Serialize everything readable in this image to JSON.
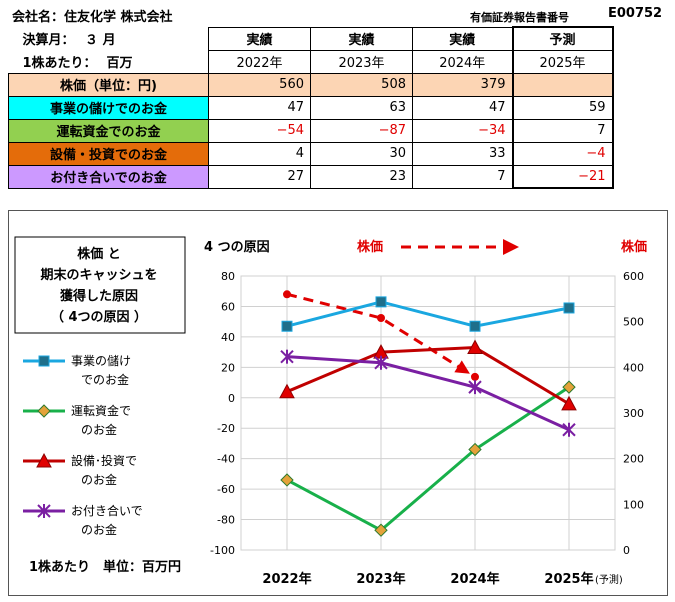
{
  "header": {
    "company": "会社名：住友化学 株式会社",
    "doc_label": "有価証券報告書番号",
    "doc_code": "E00752",
    "fiscal_label": "決算月：",
    "fiscal_value": "３ 月",
    "per_share_label": "1株あたり：",
    "per_share_unit": "百万"
  },
  "table": {
    "columns": [
      {
        "kind": "実績",
        "year": "2022年"
      },
      {
        "kind": "実績",
        "year": "2023年"
      },
      {
        "kind": "実績",
        "year": "2024年"
      },
      {
        "kind": "予測",
        "year": "2025年"
      }
    ],
    "rows": [
      {
        "label": "株価（単位：円)",
        "color": "#fcd5b4",
        "values": [
          "560",
          "508",
          "379",
          ""
        ]
      },
      {
        "label": "事業の儲けでのお金",
        "color": "#00ffff",
        "values": [
          "47",
          "63",
          "47",
          "59"
        ]
      },
      {
        "label": "運転資金でのお金",
        "color": "#92d050",
        "values": [
          "−54",
          "−87",
          "−34",
          "7"
        ]
      },
      {
        "label": "設備・投資でのお金",
        "color": "#e46c0a",
        "values": [
          "4",
          "30",
          "33",
          "−4"
        ]
      },
      {
        "label": "お付き合いでのお金",
        "color": "#cc99ff",
        "values": [
          "27",
          "23",
          "7",
          "−21"
        ]
      }
    ]
  },
  "chart_data": {
    "type": "line",
    "title_box": [
      "株価 と",
      "期末のキャッシュを",
      "獲得した原因",
      "（ 4つの原因 ）"
    ],
    "cause_label": "4 つの原因",
    "stock_arrow_label": "株価",
    "right_axis_title": "株価",
    "unit_note": "1株あたり　単位：百万円",
    "categories": [
      "2022年",
      "2023年",
      "2024年",
      "2025年"
    ],
    "forecast_suffix": "(予測)",
    "ylim_left": [
      -100,
      80
    ],
    "yticks_left": [
      80,
      60,
      40,
      20,
      0,
      -20,
      -40,
      -60,
      -80,
      -100
    ],
    "ylim_right": [
      0,
      600
    ],
    "yticks_right": [
      600,
      500,
      400,
      300,
      200,
      100,
      0
    ],
    "grid": true,
    "series": [
      {
        "name": "事業の儲けでのお金",
        "legend": [
          "事業の儲け",
          "でのお金"
        ],
        "color": "#1aa7e0",
        "marker": "square",
        "values": [
          47,
          63,
          47,
          59
        ]
      },
      {
        "name": "運転資金でのお金",
        "legend": [
          "運転資金で",
          "のお金"
        ],
        "color": "#18b04a",
        "marker": "diamond",
        "values": [
          -54,
          -87,
          -34,
          7
        ]
      },
      {
        "name": "設備･投資でのお金",
        "legend": [
          "設備･投資で",
          "のお金"
        ],
        "color": "#c00000",
        "marker": "triangle",
        "values": [
          4,
          30,
          33,
          -4
        ]
      },
      {
        "name": "お付き合いでのお金",
        "legend": [
          "お付き合いで",
          "のお金"
        ],
        "color": "#7a1fa2",
        "marker": "star",
        "values": [
          27,
          23,
          7,
          -21
        ]
      }
    ],
    "stock_series": {
      "name": "株価",
      "color": "#e00000",
      "values": [
        560,
        508,
        379
      ]
    }
  }
}
